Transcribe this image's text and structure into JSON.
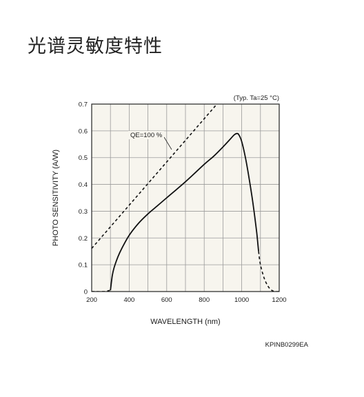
{
  "page": {
    "title": "光谱灵敏度特性"
  },
  "chart_data": {
    "type": "line",
    "xlabel": "WAVELENGTH (nm)",
    "ylabel": "PHOTO SENSITIVITY (A/W)",
    "xlim": [
      200,
      1200
    ],
    "ylim": [
      0,
      0.7
    ],
    "x_ticks": [
      "200",
      "400",
      "600",
      "800",
      "1000",
      "1200"
    ],
    "y_ticks": [
      "0",
      "0.1",
      "0.2",
      "0.3",
      "0.4",
      "0.5",
      "0.6",
      "0.7"
    ],
    "grid": true,
    "condition_note": "(Typ. Ta=25 °C)",
    "series_label": "QE=100 %",
    "figure_code": "KPINB0299EA",
    "series": [
      {
        "style": "dashed",
        "x": [
          200,
          265,
          300
        ],
        "y": [
          0,
          0,
          0.005
        ]
      },
      {
        "style": "solid",
        "x": [
          300,
          310,
          320,
          340,
          360,
          400,
          450,
          500,
          550,
          600,
          700,
          800,
          850,
          900,
          940,
          960,
          975,
          985,
          1000,
          1020,
          1040,
          1060,
          1080,
          1090
        ],
        "y": [
          0.005,
          0.06,
          0.09,
          0.13,
          0.16,
          0.21,
          0.255,
          0.29,
          0.32,
          0.35,
          0.41,
          0.475,
          0.505,
          0.54,
          0.57,
          0.585,
          0.59,
          0.585,
          0.56,
          0.5,
          0.42,
          0.33,
          0.22,
          0.15
        ]
      },
      {
        "style": "dashed",
        "x": [
          1090,
          1100,
          1120,
          1140,
          1160,
          1180,
          1200
        ],
        "y": [
          0.15,
          0.1,
          0.05,
          0.02,
          0.005,
          0.0,
          0.0
        ]
      },
      {
        "name": "QE=100 %",
        "style": "dashed",
        "x": [
          200,
          1200
        ],
        "y": [
          0.161,
          0.968
        ]
      }
    ]
  }
}
